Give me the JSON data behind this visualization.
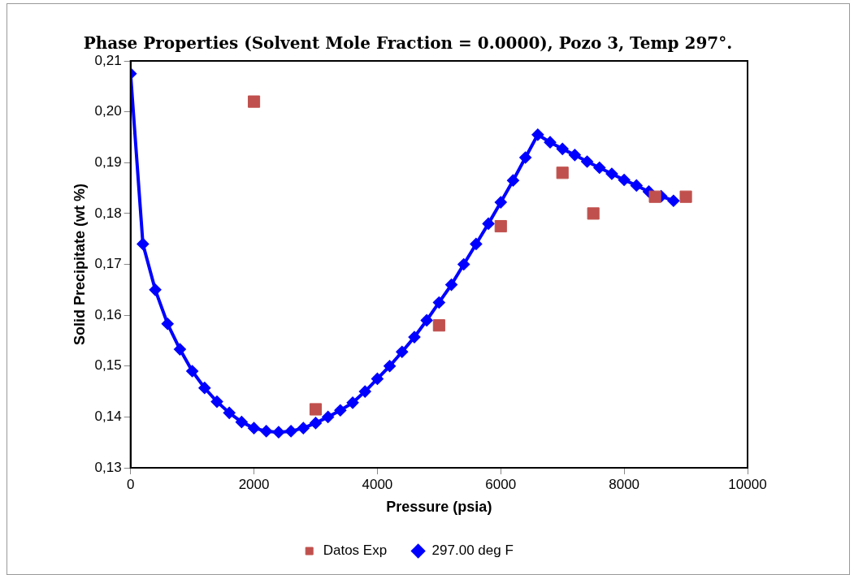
{
  "chart_data": {
    "type": "line",
    "title": "Phase Properties (Solvent Mole Fraction = 0.0000), Pozo 3, Temp 297°.",
    "xlabel": "Pressure (psia)",
    "ylabel": "Solid Precipitate (wt %)",
    "xlim": [
      0,
      10000
    ],
    "xticks": [
      0,
      2000,
      4000,
      6000,
      8000,
      10000
    ],
    "ylim": [
      0.13,
      0.21
    ],
    "yticks": [
      {
        "value": 0.13,
        "label": "0,13"
      },
      {
        "value": 0.14,
        "label": "0,14"
      },
      {
        "value": 0.15,
        "label": "0,15"
      },
      {
        "value": 0.16,
        "label": "0,16"
      },
      {
        "value": 0.17,
        "label": "0,17"
      },
      {
        "value": 0.18,
        "label": "0,18"
      },
      {
        "value": 0.19,
        "label": "0,19"
      },
      {
        "value": 0.2,
        "label": "0,20"
      },
      {
        "value": 0.21,
        "label": "0,21"
      }
    ],
    "grid": false,
    "legend": "bottom",
    "series": [
      {
        "name": "Datos Exp",
        "type": "scatter",
        "marker": "square",
        "color": "#c0504d",
        "x": [
          2000,
          3000,
          5000,
          6000,
          7000,
          7500,
          8500,
          9000
        ],
        "values": [
          0.202,
          0.1415,
          0.158,
          0.1775,
          0.188,
          0.18,
          0.1833,
          0.1833
        ]
      },
      {
        "name": "297.00 deg F",
        "type": "line",
        "marker": "diamond",
        "line_style": "solid",
        "color": "#0000ff",
        "x": [
          0,
          200,
          400,
          600,
          800,
          1000,
          1200,
          1400,
          1600,
          1800,
          2000,
          2200,
          2400,
          2600,
          2800,
          3000,
          3200,
          3400,
          3600,
          3800,
          4000,
          4200,
          4400,
          4600,
          4800,
          5000,
          5200,
          5400,
          5600,
          5800,
          6000,
          6200,
          6400,
          6600,
          6800,
          7000,
          7200,
          7400,
          7600,
          7800,
          8000,
          8200,
          8400,
          8600,
          8800
        ],
        "values": [
          0.2075,
          0.174,
          0.165,
          0.1583,
          0.1533,
          0.149,
          0.1457,
          0.143,
          0.1408,
          0.139,
          0.1378,
          0.1372,
          0.137,
          0.1372,
          0.1378,
          0.1388,
          0.14,
          0.1413,
          0.1428,
          0.145,
          0.1475,
          0.15,
          0.1528,
          0.1557,
          0.159,
          0.1625,
          0.166,
          0.17,
          0.174,
          0.178,
          0.1822,
          0.1865,
          0.191,
          0.1955,
          0.194,
          0.1927,
          0.1915,
          0.1902,
          0.189,
          0.1878,
          0.1866,
          0.1855,
          0.1843,
          0.1834,
          0.1825
        ]
      }
    ]
  }
}
